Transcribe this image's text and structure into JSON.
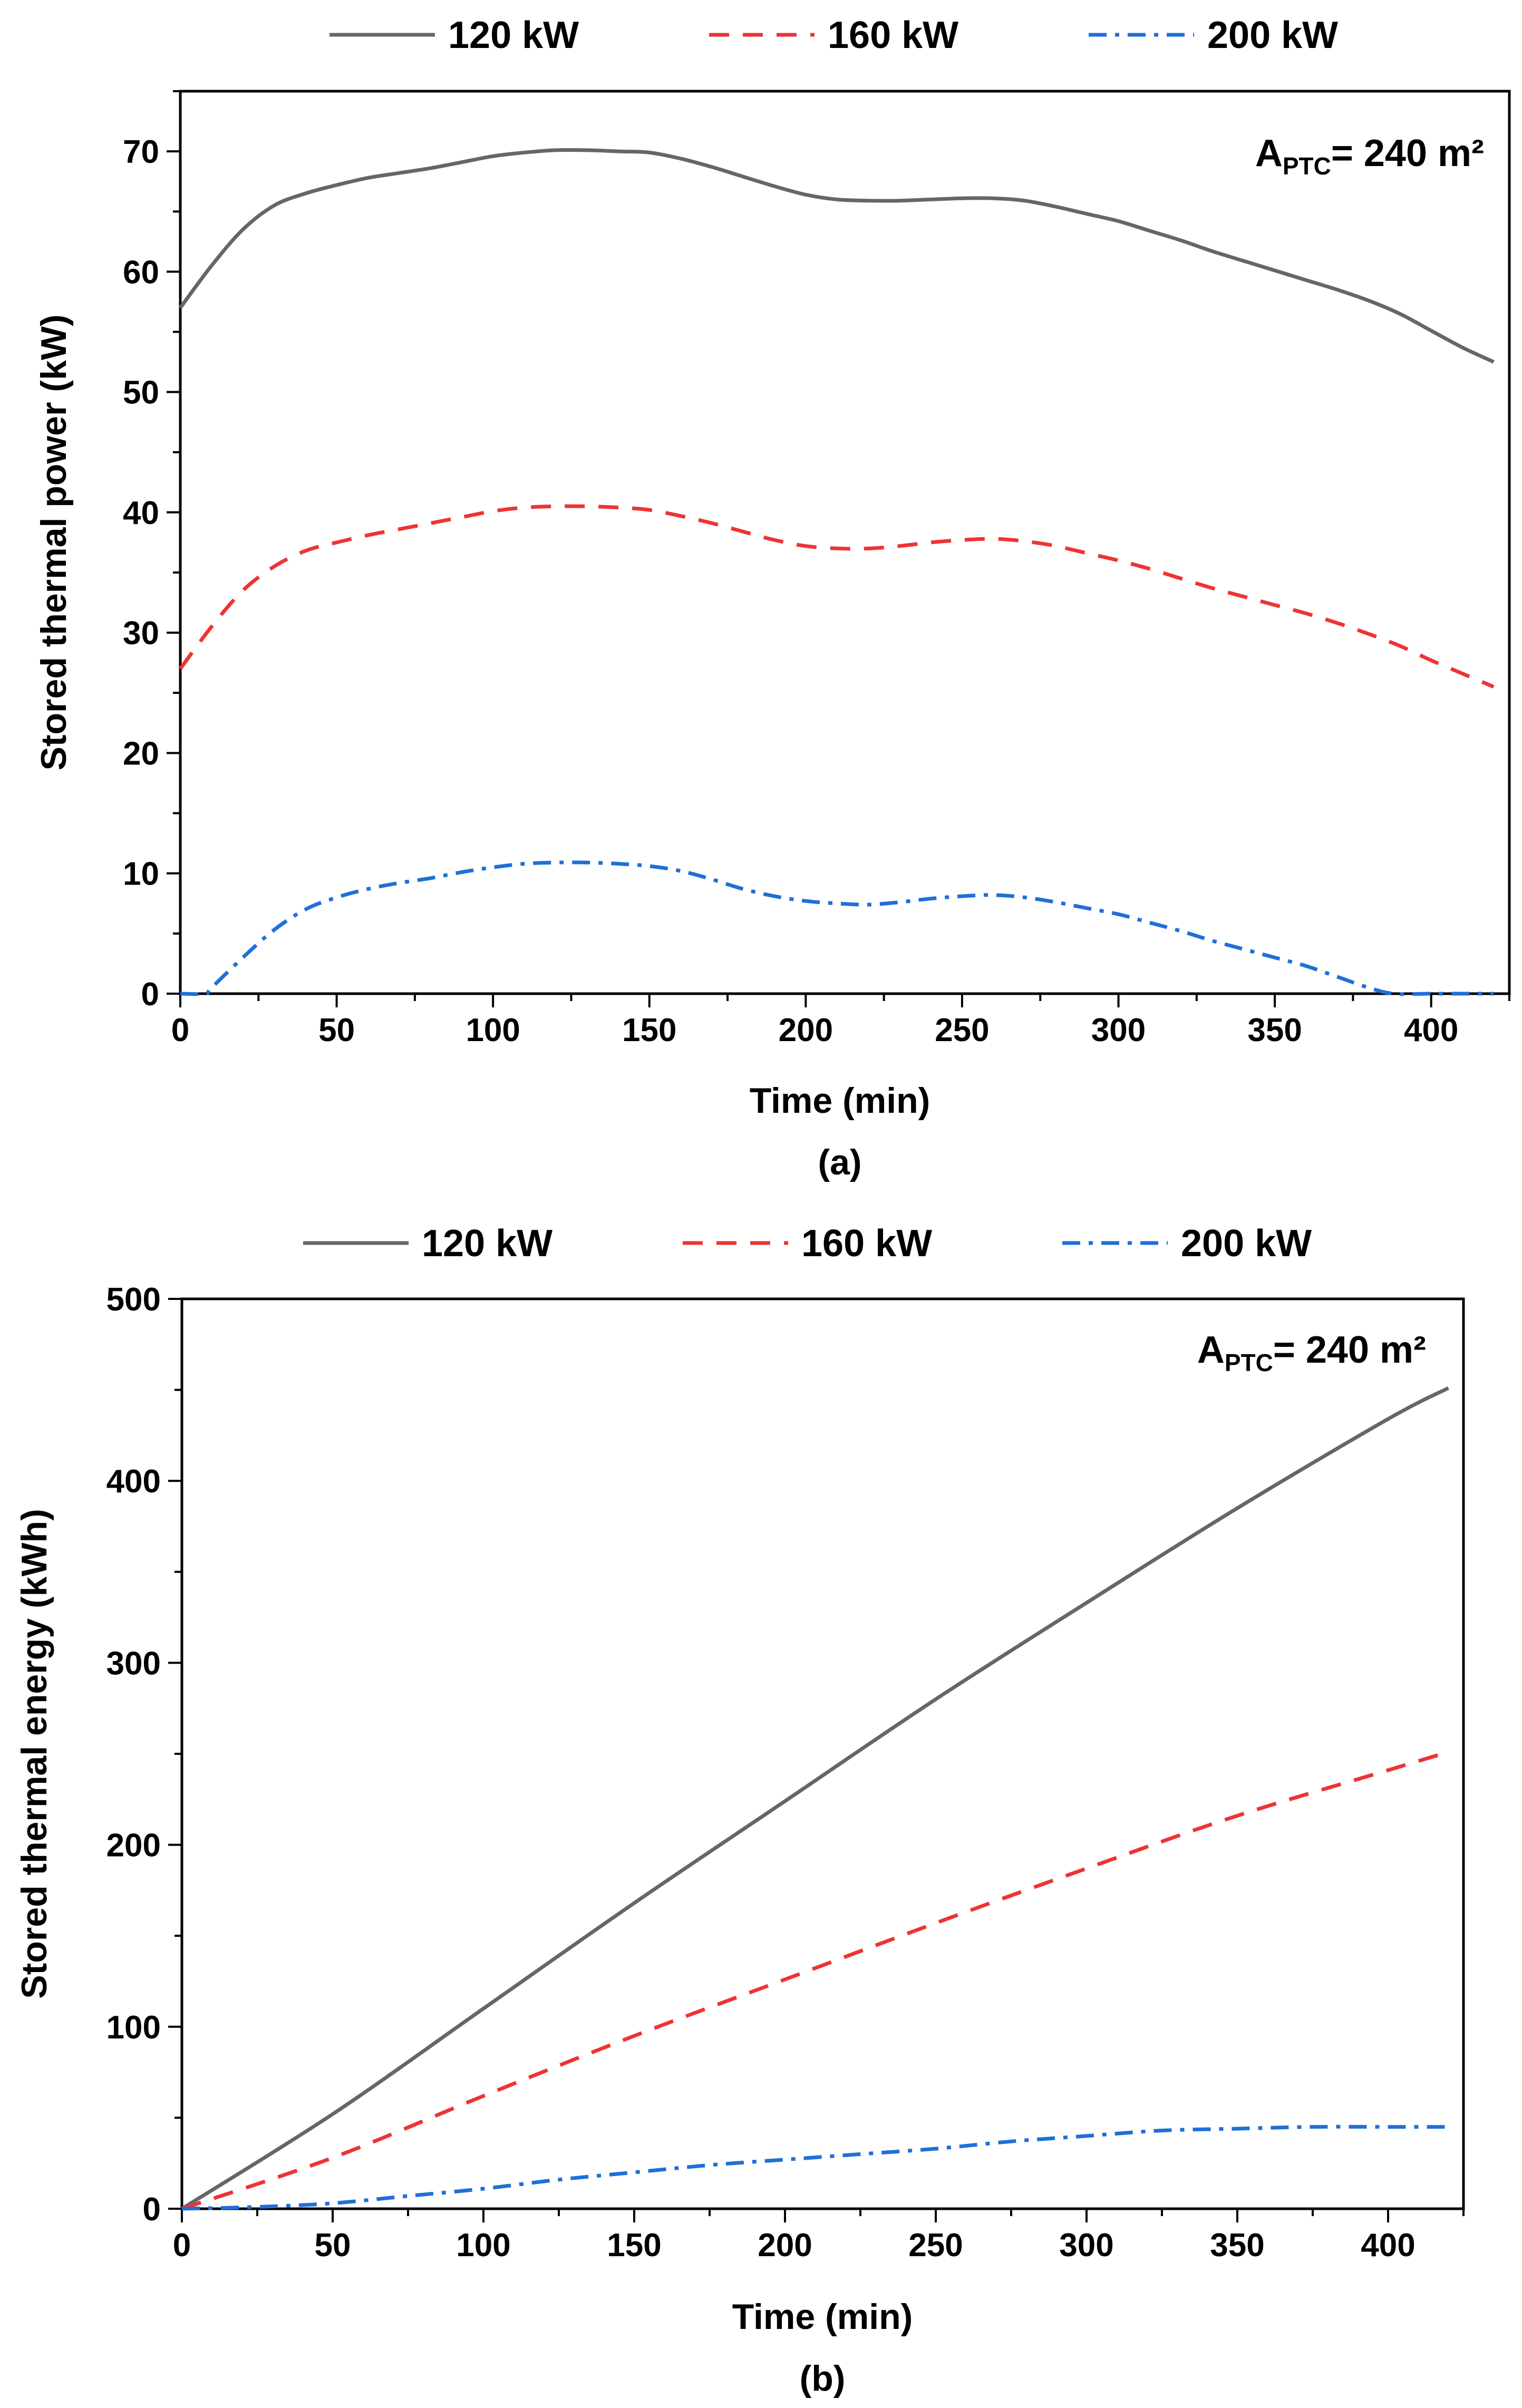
{
  "charts": [
    {
      "id": "a",
      "type": "line",
      "panel_label": "(a)",
      "xlabel": "Time (min)",
      "ylabel": "Stored thermal power (kW)",
      "xlim": [
        0,
        425
      ],
      "ylim": [
        0,
        75
      ],
      "xticks": [
        0,
        50,
        100,
        150,
        200,
        250,
        300,
        350,
        400
      ],
      "yticks": [
        0,
        10,
        20,
        30,
        40,
        50,
        60,
        70
      ],
      "xminor": 25,
      "yminor": 5,
      "annotation": {
        "main": "A",
        "sub": "PTC",
        "rest": "= 240 m²"
      },
      "legend_position": "top-outside",
      "series": [
        {
          "name": "120 kW",
          "color": "#666666",
          "dash": "solid",
          "x": [
            0,
            10,
            20,
            30,
            40,
            50,
            60,
            70,
            80,
            90,
            100,
            110,
            120,
            130,
            140,
            150,
            160,
            170,
            180,
            190,
            200,
            210,
            220,
            230,
            240,
            250,
            260,
            270,
            280,
            290,
            300,
            310,
            320,
            330,
            340,
            350,
            360,
            370,
            380,
            390,
            400,
            410,
            420
          ],
          "y": [
            57,
            60.5,
            63.5,
            65.5,
            66.5,
            67.2,
            67.8,
            68.2,
            68.6,
            69.1,
            69.6,
            69.9,
            70.1,
            70.1,
            70,
            69.9,
            69.4,
            68.7,
            67.9,
            67.1,
            66.4,
            66,
            65.9,
            65.9,
            66,
            66.1,
            66.1,
            65.9,
            65.4,
            64.8,
            64.2,
            63.4,
            62.6,
            61.7,
            60.9,
            60.1,
            59.3,
            58.5,
            57.6,
            56.5,
            55.1,
            53.7,
            52.5
          ]
        },
        {
          "name": "160 kW",
          "color": "#EE3333",
          "dash": "dashed",
          "x": [
            0,
            10,
            20,
            30,
            40,
            50,
            60,
            70,
            80,
            90,
            100,
            110,
            120,
            130,
            140,
            150,
            160,
            170,
            180,
            190,
            200,
            210,
            220,
            230,
            240,
            250,
            260,
            270,
            280,
            290,
            300,
            310,
            320,
            330,
            340,
            350,
            360,
            370,
            380,
            390,
            400,
            410,
            420
          ],
          "y": [
            27,
            30.5,
            33.5,
            35.5,
            36.8,
            37.5,
            38.1,
            38.6,
            39.1,
            39.6,
            40.1,
            40.4,
            40.5,
            40.5,
            40.4,
            40.2,
            39.7,
            39.1,
            38.4,
            37.7,
            37.2,
            37,
            37,
            37.2,
            37.5,
            37.7,
            37.8,
            37.6,
            37.2,
            36.6,
            36,
            35.3,
            34.5,
            33.7,
            33,
            32.3,
            31.6,
            30.8,
            29.9,
            28.9,
            27.7,
            26.6,
            25.5
          ]
        },
        {
          "name": "200 kW",
          "color": "#1F6FD8",
          "dash": "dashdot",
          "x": [
            0,
            8,
            10,
            20,
            30,
            40,
            50,
            60,
            70,
            80,
            90,
            100,
            110,
            120,
            130,
            140,
            150,
            160,
            170,
            180,
            190,
            200,
            210,
            220,
            230,
            240,
            250,
            260,
            270,
            280,
            290,
            300,
            310,
            320,
            330,
            340,
            350,
            360,
            370,
            380,
            388,
            400,
            410,
            420
          ],
          "y": [
            0,
            0,
            0.5,
            3,
            5.3,
            7,
            8,
            8.7,
            9.2,
            9.6,
            10.1,
            10.5,
            10.8,
            10.9,
            10.9,
            10.8,
            10.6,
            10.2,
            9.5,
            8.7,
            8.1,
            7.7,
            7.5,
            7.4,
            7.6,
            7.9,
            8.1,
            8.2,
            8,
            7.6,
            7.1,
            6.6,
            5.9,
            5.2,
            4.4,
            3.7,
            3,
            2.3,
            1.4,
            0.5,
            0,
            0,
            0,
            0
          ]
        }
      ]
    },
    {
      "id": "b",
      "type": "line",
      "panel_label": "(b)",
      "xlabel": "Time (min)",
      "ylabel": "Stored thermal energy (kWh)",
      "xlim": [
        0,
        425
      ],
      "ylim": [
        0,
        500
      ],
      "xticks": [
        0,
        50,
        100,
        150,
        200,
        250,
        300,
        350,
        400
      ],
      "yticks": [
        0,
        100,
        200,
        300,
        400,
        500
      ],
      "xminor": 25,
      "yminor": 50,
      "annotation": {
        "main": "A",
        "sub": "PTC",
        "rest": "= 240 m²"
      },
      "legend_position": "top-outside",
      "series": [
        {
          "name": "120 kW",
          "color": "#666666",
          "dash": "solid",
          "x": [
            0,
            50,
            100,
            150,
            200,
            250,
            300,
            350,
            400,
            420
          ],
          "y": [
            0,
            52,
            110,
            168,
            224,
            280,
            333,
            385,
            434,
            451
          ]
        },
        {
          "name": "160 kW",
          "color": "#EE3333",
          "dash": "dashed",
          "x": [
            0,
            50,
            100,
            150,
            200,
            250,
            300,
            350,
            400,
            420
          ],
          "y": [
            0,
            28,
            62,
            95,
            126,
            157,
            187,
            216,
            241,
            251
          ]
        },
        {
          "name": "200 kW",
          "color": "#1F6FD8",
          "dash": "dashdot",
          "x": [
            0,
            25,
            50,
            75,
            100,
            125,
            150,
            175,
            200,
            225,
            250,
            275,
            300,
            325,
            350,
            375,
            400,
            420
          ],
          "y": [
            0,
            1,
            3,
            7,
            11,
            16,
            20,
            24,
            27,
            30,
            33,
            37,
            40,
            43,
            44,
            45,
            45,
            45
          ]
        }
      ]
    }
  ]
}
